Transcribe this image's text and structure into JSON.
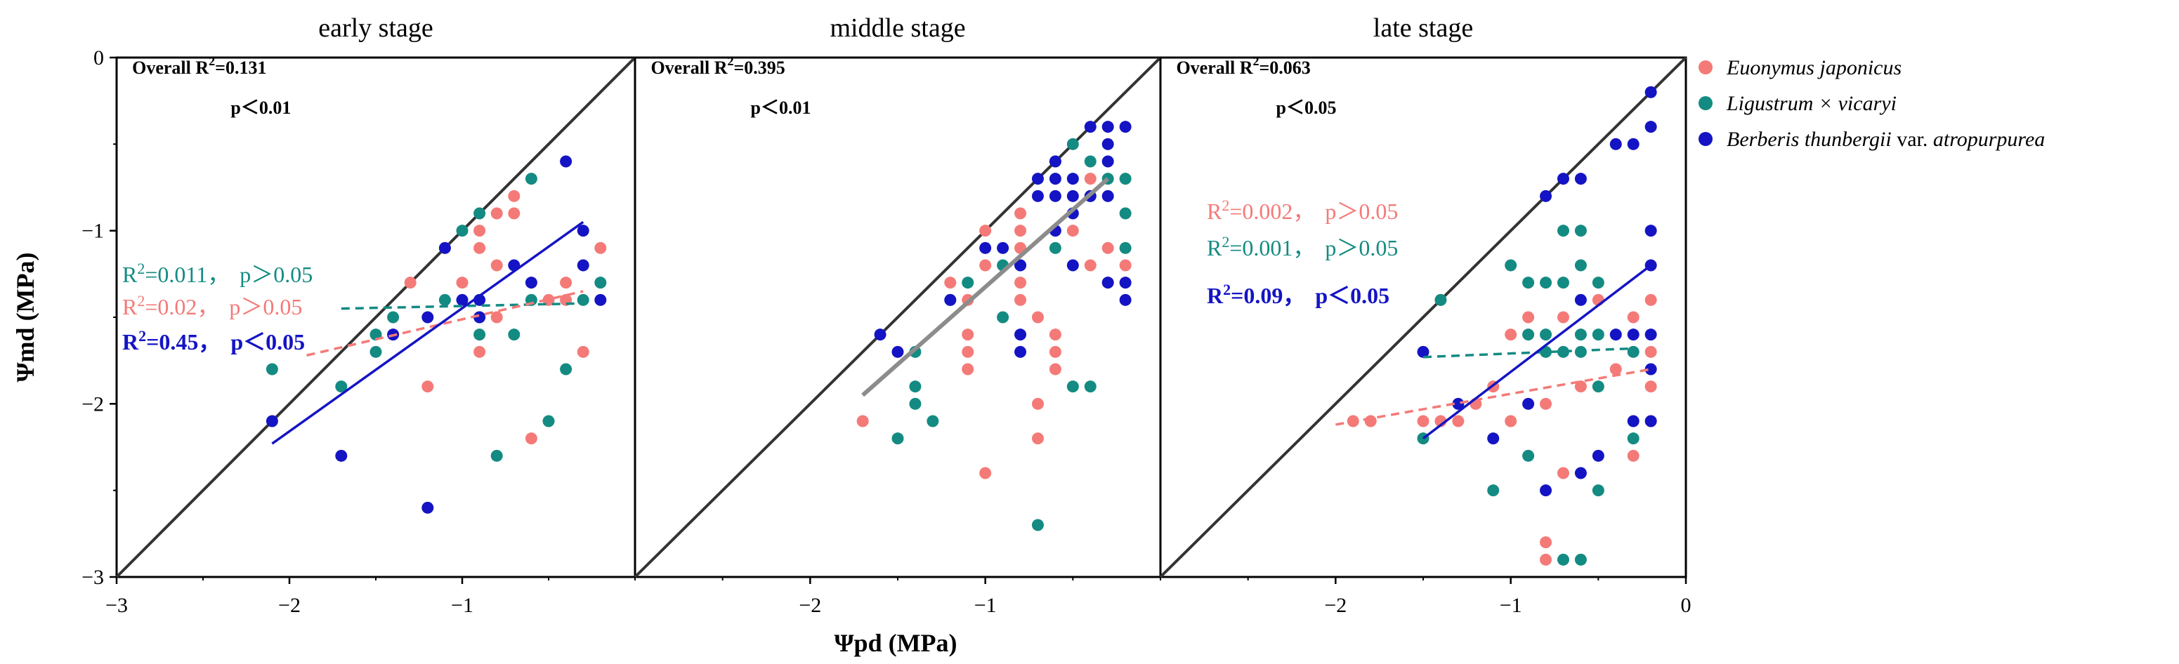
{
  "figure": {
    "y_label": "Ψmd (MPa)",
    "x_label": "Ψpd (MPa)",
    "y_ticks": [
      "0",
      "−1",
      "−2",
      "−3"
    ],
    "x_ticks_first": [
      "−3",
      "−2",
      "−1"
    ],
    "x_ticks_middle": [
      "−2",
      "−1"
    ],
    "x_ticks_last": [
      "−2",
      "−1",
      "0"
    ]
  },
  "colors": {
    "euonymus": "#F47A78",
    "ligustrum": "#138B82",
    "berberis": "#1414C4",
    "overall_line": "#8C8C8C",
    "identity_line": "#333333"
  },
  "legend": [
    {
      "key": "euonymus",
      "label": "Euonymus japonicus"
    },
    {
      "key": "ligustrum",
      "label": "Ligustrum × vicaryi"
    },
    {
      "key": "berberis",
      "label_italic_1": "Berberis thunbergii",
      "label_normal": " var. ",
      "label_italic_2": "atropurpurea"
    }
  ],
  "chart_data": [
    {
      "type": "scatter",
      "title": "early stage",
      "xlim": [
        -3,
        0
      ],
      "ylim": [
        -3,
        0
      ],
      "overall": {
        "r2_label": "Overall R",
        "r2_value": "=0.131",
        "p": "p＜0.01"
      },
      "annotations": [
        {
          "key": "ligustrum",
          "r2": "=0.011，",
          "p": "p＞0.05",
          "bold": false
        },
        {
          "key": "euonymus",
          "r2": "=0.02，",
          "p": "p＞0.05",
          "bold": false
        },
        {
          "key": "berberis",
          "r2": "=0.45，",
          "p": "p＜0.05",
          "bold": true
        }
      ],
      "fits": [
        {
          "key": "ligustrum",
          "style": "dashed",
          "x": [
            -1.7,
            -0.3
          ],
          "y": [
            -1.45,
            -1.42
          ]
        },
        {
          "key": "euonymus",
          "style": "dashed",
          "x": [
            -1.9,
            -0.3
          ],
          "y": [
            -1.72,
            -1.35
          ]
        },
        {
          "key": "berberis",
          "style": "solid",
          "x": [
            -2.1,
            -0.3
          ],
          "y": [
            -2.23,
            -0.95
          ]
        }
      ],
      "series": [
        {
          "key": "euonymus",
          "points": [
            [
              -1.3,
              -1.3
            ],
            [
              -1.2,
              -1.9
            ],
            [
              -1.1,
              -1.1
            ],
            [
              -1.0,
              -1.3
            ],
            [
              -0.9,
              -1.0
            ],
            [
              -0.9,
              -1.1
            ],
            [
              -0.8,
              -0.9
            ],
            [
              -0.8,
              -1.2
            ],
            [
              -0.7,
              -0.8
            ],
            [
              -0.7,
              -0.9
            ],
            [
              -0.9,
              -1.7
            ],
            [
              -0.6,
              -2.2
            ],
            [
              -0.8,
              -1.5
            ],
            [
              -0.4,
              -1.3
            ],
            [
              -0.4,
              -1.4
            ],
            [
              -0.2,
              -1.1
            ],
            [
              -0.5,
              -1.4
            ],
            [
              -0.3,
              -1.7
            ],
            [
              -1.4,
              -1.6
            ]
          ]
        },
        {
          "key": "ligustrum",
          "points": [
            [
              -2.1,
              -1.8
            ],
            [
              -1.7,
              -1.9
            ],
            [
              -1.5,
              -1.6
            ],
            [
              -1.5,
              -1.7
            ],
            [
              -1.4,
              -1.5
            ],
            [
              -1.0,
              -1.0
            ],
            [
              -0.9,
              -0.9
            ],
            [
              -0.9,
              -1.5
            ],
            [
              -0.9,
              -1.6
            ],
            [
              -0.7,
              -1.6
            ],
            [
              -0.8,
              -2.3
            ],
            [
              -0.6,
              -0.7
            ],
            [
              -0.5,
              -2.1
            ],
            [
              -0.4,
              -1.8
            ],
            [
              -0.2,
              -1.3
            ],
            [
              -1.1,
              -1.4
            ],
            [
              -0.6,
              -1.4
            ],
            [
              -0.3,
              -1.4
            ]
          ]
        },
        {
          "key": "berberis",
          "points": [
            [
              -2.1,
              -2.1
            ],
            [
              -1.7,
              -2.3
            ],
            [
              -1.4,
              -1.6
            ],
            [
              -1.2,
              -2.6
            ],
            [
              -1.2,
              -1.5
            ],
            [
              -1.1,
              -1.1
            ],
            [
              -1.0,
              -1.4
            ],
            [
              -0.9,
              -1.4
            ],
            [
              -0.9,
              -1.5
            ],
            [
              -0.7,
              -1.2
            ],
            [
              -0.6,
              -1.3
            ],
            [
              -0.4,
              -0.6
            ],
            [
              -0.3,
              -1.0
            ],
            [
              -0.3,
              -1.2
            ],
            [
              -0.2,
              -1.4
            ]
          ]
        }
      ]
    },
    {
      "type": "scatter",
      "title": "middle  stage",
      "xlim": [
        -3,
        0
      ],
      "ylim": [
        -3,
        0
      ],
      "overall": {
        "r2_label": "Overall R",
        "r2_value": "=0.395",
        "p": "p＜0.01",
        "fit": {
          "x": [
            -1.7,
            -0.3
          ],
          "y": [
            -1.95,
            -0.7
          ]
        }
      },
      "annotations": [],
      "fits": [],
      "series": [
        {
          "key": "euonymus",
          "points": [
            [
              -1.7,
              -2.1
            ],
            [
              -1.2,
              -1.3
            ],
            [
              -1.1,
              -1.4
            ],
            [
              -1.1,
              -1.6
            ],
            [
              -1.1,
              -1.7
            ],
            [
              -1.1,
              -1.8
            ],
            [
              -1.0,
              -1.0
            ],
            [
              -1.0,
              -1.2
            ],
            [
              -1.0,
              -2.4
            ],
            [
              -0.8,
              -0.9
            ],
            [
              -0.8,
              -1.0
            ],
            [
              -0.8,
              -1.1
            ],
            [
              -0.8,
              -1.3
            ],
            [
              -0.8,
              -1.4
            ],
            [
              -0.7,
              -1.5
            ],
            [
              -0.7,
              -2.0
            ],
            [
              -0.7,
              -2.2
            ],
            [
              -0.6,
              -1.6
            ],
            [
              -0.6,
              -1.7
            ],
            [
              -0.6,
              -1.8
            ],
            [
              -0.5,
              -1.0
            ],
            [
              -0.4,
              -0.7
            ],
            [
              -0.4,
              -1.2
            ],
            [
              -0.3,
              -1.1
            ],
            [
              -0.3,
              -1.3
            ],
            [
              -0.2,
              -1.2
            ]
          ]
        },
        {
          "key": "ligustrum",
          "points": [
            [
              -1.5,
              -2.2
            ],
            [
              -1.4,
              -1.7
            ],
            [
              -1.4,
              -1.9
            ],
            [
              -1.4,
              -2.0
            ],
            [
              -1.3,
              -2.1
            ],
            [
              -1.2,
              -1.4
            ],
            [
              -1.1,
              -1.3
            ],
            [
              -0.9,
              -1.2
            ],
            [
              -0.9,
              -1.5
            ],
            [
              -0.8,
              -1.2
            ],
            [
              -0.7,
              -2.7
            ],
            [
              -0.6,
              -0.6
            ],
            [
              -0.6,
              -1.1
            ],
            [
              -0.5,
              -0.5
            ],
            [
              -0.5,
              -1.9
            ],
            [
              -0.4,
              -1.9
            ],
            [
              -0.4,
              -0.6
            ],
            [
              -0.4,
              -0.8
            ],
            [
              -0.3,
              -0.7
            ],
            [
              -0.2,
              -0.7
            ],
            [
              -0.2,
              -0.9
            ],
            [
              -0.2,
              -1.1
            ]
          ]
        },
        {
          "key": "berberis",
          "points": [
            [
              -1.6,
              -1.6
            ],
            [
              -1.5,
              -1.7
            ],
            [
              -1.2,
              -1.4
            ],
            [
              -1.0,
              -1.1
            ],
            [
              -0.9,
              -1.1
            ],
            [
              -0.8,
              -1.2
            ],
            [
              -0.8,
              -1.6
            ],
            [
              -0.8,
              -1.7
            ],
            [
              -0.7,
              -0.7
            ],
            [
              -0.7,
              -0.8
            ],
            [
              -0.6,
              -0.6
            ],
            [
              -0.6,
              -0.7
            ],
            [
              -0.6,
              -0.8
            ],
            [
              -0.6,
              -1.0
            ],
            [
              -0.5,
              -0.7
            ],
            [
              -0.5,
              -0.8
            ],
            [
              -0.5,
              -0.9
            ],
            [
              -0.5,
              -1.2
            ],
            [
              -0.4,
              -0.4
            ],
            [
              -0.4,
              -0.8
            ],
            [
              -0.3,
              -0.4
            ],
            [
              -0.3,
              -0.5
            ],
            [
              -0.3,
              -0.6
            ],
            [
              -0.3,
              -0.8
            ],
            [
              -0.3,
              -1.3
            ],
            [
              -0.2,
              -0.4
            ],
            [
              -0.2,
              -1.3
            ],
            [
              -0.2,
              -1.4
            ]
          ]
        }
      ]
    },
    {
      "type": "scatter",
      "title": "late stage",
      "xlim": [
        -3,
        0
      ],
      "ylim": [
        -3,
        0
      ],
      "overall": {
        "r2_label": "Overall R",
        "r2_value": "=0.063",
        "p": "p＜0.05"
      },
      "annotations": [
        {
          "key": "euonymus",
          "r2": "=0.002，",
          "p": "p＞0.05",
          "bold": false
        },
        {
          "key": "ligustrum",
          "r2": "=0.001，",
          "p": "p＞0.05",
          "bold": false
        },
        {
          "key": "berberis",
          "r2": "=0.09，",
          "p": "p＜0.05",
          "bold": true
        }
      ],
      "fits": [
        {
          "key": "euonymus",
          "style": "dashed",
          "x": [
            -2.0,
            -0.2
          ],
          "y": [
            -2.12,
            -1.8
          ]
        },
        {
          "key": "ligustrum",
          "style": "dashed",
          "x": [
            -1.5,
            -0.3
          ],
          "y": [
            -1.73,
            -1.68
          ]
        },
        {
          "key": "berberis",
          "style": "solid",
          "x": [
            -1.5,
            -0.2
          ],
          "y": [
            -2.2,
            -1.2
          ]
        }
      ],
      "series": [
        {
          "key": "euonymus",
          "points": [
            [
              -1.9,
              -2.1
            ],
            [
              -1.8,
              -2.1
            ],
            [
              -1.5,
              -2.1
            ],
            [
              -1.4,
              -1.4
            ],
            [
              -1.4,
              -2.1
            ],
            [
              -1.3,
              -2.1
            ],
            [
              -1.2,
              -2.0
            ],
            [
              -1.1,
              -1.9
            ],
            [
              -1.0,
              -1.6
            ],
            [
              -1.0,
              -2.1
            ],
            [
              -0.9,
              -1.5
            ],
            [
              -0.8,
              -2.0
            ],
            [
              -0.8,
              -2.8
            ],
            [
              -0.8,
              -2.9
            ],
            [
              -0.7,
              -2.4
            ],
            [
              -0.7,
              -1.5
            ],
            [
              -0.6,
              -1.9
            ],
            [
              -0.5,
              -1.4
            ],
            [
              -0.4,
              -1.8
            ],
            [
              -0.3,
              -1.5
            ],
            [
              -0.3,
              -2.3
            ],
            [
              -0.2,
              -1.4
            ],
            [
              -0.2,
              -1.7
            ],
            [
              -0.2,
              -1.9
            ],
            [
              -0.2,
              -2.1
            ]
          ]
        },
        {
          "key": "ligustrum",
          "points": [
            [
              -1.5,
              -2.2
            ],
            [
              -1.4,
              -1.4
            ],
            [
              -1.1,
              -2.5
            ],
            [
              -1.0,
              -1.2
            ],
            [
              -0.9,
              -1.3
            ],
            [
              -0.9,
              -1.6
            ],
            [
              -0.9,
              -2.3
            ],
            [
              -0.8,
              -1.3
            ],
            [
              -0.8,
              -1.6
            ],
            [
              -0.8,
              -1.7
            ],
            [
              -0.7,
              -1.0
            ],
            [
              -0.7,
              -1.3
            ],
            [
              -0.7,
              -1.7
            ],
            [
              -0.7,
              -2.9
            ],
            [
              -0.6,
              -1.0
            ],
            [
              -0.6,
              -1.2
            ],
            [
              -0.6,
              -1.6
            ],
            [
              -0.6,
              -1.7
            ],
            [
              -0.6,
              -2.9
            ],
            [
              -0.5,
              -1.3
            ],
            [
              -0.5,
              -1.6
            ],
            [
              -0.5,
              -1.9
            ],
            [
              -0.5,
              -2.5
            ],
            [
              -0.3,
              -1.7
            ],
            [
              -0.3,
              -2.2
            ]
          ]
        },
        {
          "key": "berberis",
          "points": [
            [
              -1.5,
              -1.7
            ],
            [
              -1.3,
              -2.0
            ],
            [
              -1.1,
              -2.2
            ],
            [
              -0.9,
              -2.0
            ],
            [
              -0.8,
              -0.8
            ],
            [
              -0.8,
              -2.5
            ],
            [
              -0.7,
              -0.7
            ],
            [
              -0.6,
              -0.7
            ],
            [
              -0.6,
              -1.4
            ],
            [
              -0.6,
              -2.4
            ],
            [
              -0.5,
              -2.3
            ],
            [
              -0.4,
              -0.5
            ],
            [
              -0.3,
              -0.5
            ],
            [
              -0.4,
              -1.6
            ],
            [
              -0.3,
              -1.6
            ],
            [
              -0.3,
              -2.1
            ],
            [
              -0.2,
              -0.2
            ],
            [
              -0.2,
              -0.4
            ],
            [
              -0.2,
              -1.0
            ],
            [
              -0.2,
              -1.2
            ],
            [
              -0.2,
              -1.6
            ],
            [
              -0.2,
              -1.8
            ],
            [
              -0.2,
              -2.1
            ]
          ]
        }
      ]
    }
  ]
}
